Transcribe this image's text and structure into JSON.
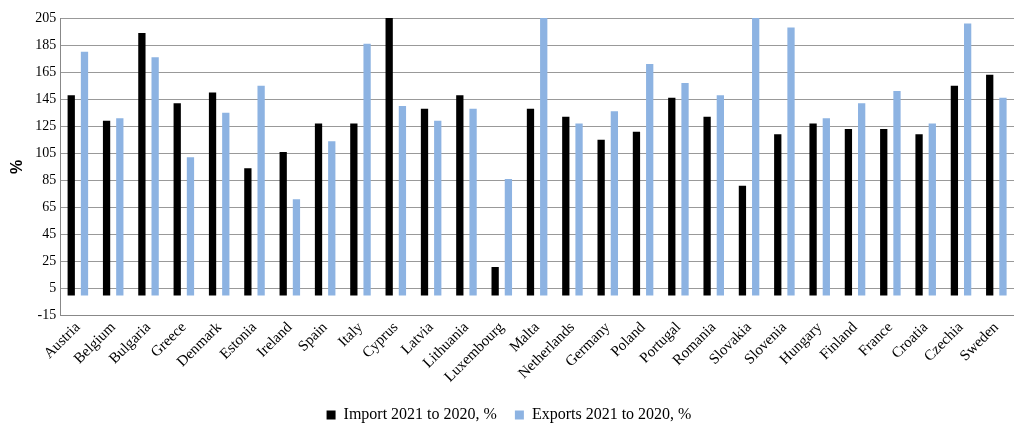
{
  "chart_data": {
    "type": "bar",
    "ylabel": "%",
    "categories": [
      "Austria",
      "Belgium",
      "Bulgaria",
      "Greece",
      "Denmark",
      "Estonia",
      "Ireland",
      "Spain",
      "Italy",
      "Cyprus",
      "Latvia",
      "Lithuania",
      "Luxembourg",
      "Malta",
      "Netherlands",
      "Germany",
      "Poland",
      "Portugal",
      "Romania",
      "Slovakia",
      "Slovenia",
      "Hungary",
      "Finland",
      "France",
      "Croatia",
      "Czechia",
      "Sweden"
    ],
    "series": [
      {
        "name": "Import 2021 to 2020, %",
        "color": "#000000",
        "values": [
          148,
          129,
          194,
          142,
          150,
          94,
          106,
          127,
          127,
          205,
          138,
          148,
          21,
          138,
          132,
          115,
          121,
          146,
          132,
          81,
          119,
          127,
          123,
          123,
          119,
          155,
          163
        ]
      },
      {
        "name": "Exports 2021 to 2020, %",
        "color": "#8db3e2",
        "values": [
          180,
          131,
          176,
          102,
          135,
          155,
          71,
          114,
          186,
          140,
          129,
          138,
          86,
          205,
          127,
          136,
          171,
          157,
          148,
          205,
          198,
          131,
          142,
          151,
          127,
          201,
          146
        ]
      }
    ],
    "ylim": [
      -15,
      205
    ],
    "yticks": [
      -15,
      5,
      25,
      45,
      65,
      85,
      105,
      125,
      145,
      165,
      185,
      205
    ],
    "grid": "y",
    "legend": "bottom"
  }
}
